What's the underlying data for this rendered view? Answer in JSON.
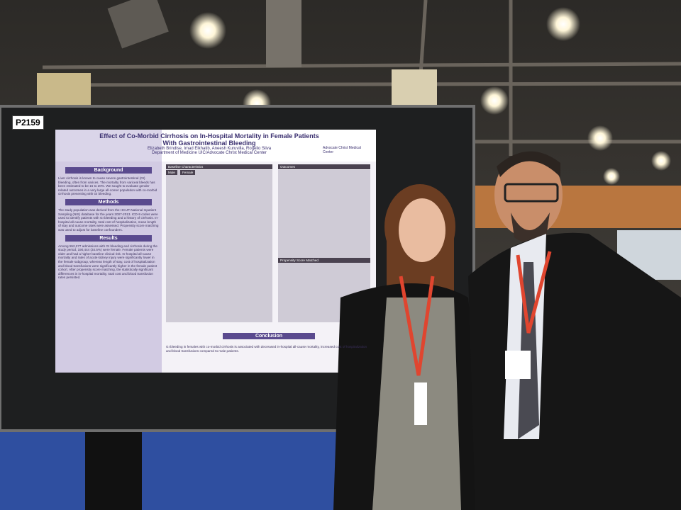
{
  "board_number": "P2159",
  "poster": {
    "title": "Effect of Co-Morbid Cirrhosis on In-Hospital Mortality in Female Patients With Gastrointestinal Bleeding",
    "authors": "Elizabeth Brindise, Imad Elkhatib, Aneesh Kuruvilla, Rogelio Silva",
    "affiliation": "Department of Medicine UIC/Advocate Christ Medical Center",
    "logo": "Advocate Christ Medical Center",
    "sections": [
      {
        "heading": "Background",
        "text": "Liver cirrhosis is known to cause severe gastrointestinal (GI) bleeding, often from varices. The mortality from variceal bleeds has been estimated to be 15 to 20%. We sought to evaluate gender related outcomes in a very large all-comer population with co-morbid cirrhosis presenting with GI bleeding."
      },
      {
        "heading": "Methods",
        "text": "The study population was derived from the HCUP-National Inpatient Sampling (NIS) database for the years 2007-2013. ICD-9 codes were used to identify patients with GI bleeding and a history of cirrhosis. In-hospital all-cause mortality, total cost of hospitalization, mean length of stay and outcome rates were assessed. Propensity score matching was used to adjust for baseline confounders."
      },
      {
        "heading": "Results",
        "text": "Among 552,277 admissions with GI bleeding and cirrhosis during the study period, 190,444 (34.5%) were female. Female patients were older and had a higher baseline clinical risk. In-hospital all-cause mortality and rates of acute kidney injury were significantly lower in the female subgroup, whereas length of stay, cost of hospitalization and blood transfusions were significantly higher in the female patient cohort. After propensity score matching, the statistically significant differences in in-hospital mortality, total cost and blood transfusion rates persisted."
      }
    ],
    "table_headings": [
      "Baseline Characteristics",
      "Male",
      "Female",
      "Outcomes",
      "Propensity Score Matched"
    ],
    "conclusion": {
      "heading": "Conclusion",
      "text": "GI bleeding in females with co-morbid cirrhosis is associated with decreased in-hospital all-cause mortality, increased cost of hospitalization and blood transfusions compared to male patients."
    }
  }
}
